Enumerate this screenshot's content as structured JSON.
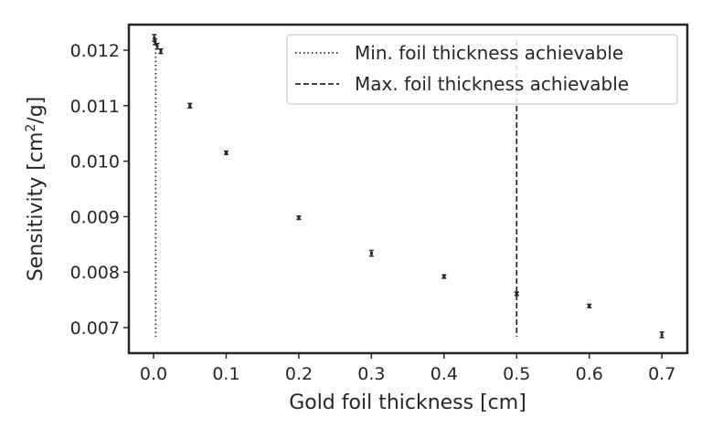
{
  "chart_data": {
    "type": "scatter",
    "title": "",
    "xlabel": "Gold foil thickness [cm]",
    "ylabel_text": "Sensitivity [cm",
    "ylabel_sup": "2",
    "ylabel_tail": "/g]",
    "xlim": [
      -0.034,
      0.735
    ],
    "ylim": [
      0.00654,
      0.01246
    ],
    "xticks": [
      0.0,
      0.1,
      0.2,
      0.3,
      0.4,
      0.5,
      0.6,
      0.7
    ],
    "xtick_labels": [
      "0.0",
      "0.1",
      "0.2",
      "0.3",
      "0.4",
      "0.5",
      "0.6",
      "0.7"
    ],
    "yticks": [
      0.007,
      0.008,
      0.009,
      0.01,
      0.011,
      0.012
    ],
    "ytick_labels": [
      "0.007",
      "0.008",
      "0.009",
      "0.010",
      "0.011",
      "0.012"
    ],
    "grid": false,
    "legend_position": "top-right",
    "points": [
      {
        "x": 0.001,
        "y": 0.01222,
        "err": 6e-05
      },
      {
        "x": 0.002,
        "y": 0.01215,
        "err": 5e-05
      },
      {
        "x": 0.005,
        "y": 0.01207,
        "err": 5e-05
      },
      {
        "x": 0.01,
        "y": 0.01198,
        "err": 4e-05
      },
      {
        "x": 0.05,
        "y": 0.011,
        "err": 4e-05
      },
      {
        "x": 0.1,
        "y": 0.01015,
        "err": 3e-05
      },
      {
        "x": 0.2,
        "y": 0.00898,
        "err": 3e-05
      },
      {
        "x": 0.3,
        "y": 0.00834,
        "err": 5e-05
      },
      {
        "x": 0.4,
        "y": 0.00792,
        "err": 3e-05
      },
      {
        "x": 0.5,
        "y": 0.00761,
        "err": 3e-05
      },
      {
        "x": 0.6,
        "y": 0.00739,
        "err": 3e-05
      },
      {
        "x": 0.7,
        "y": 0.00687,
        "err": 5e-05
      }
    ],
    "vlines": [
      {
        "x": 0.003,
        "style": "dotted",
        "label": "Min. foil thickness achievable"
      },
      {
        "x": 0.5,
        "style": "dashed",
        "label": "Max. foil thickness achievable"
      }
    ],
    "colors": {
      "marker": "#262626",
      "frame": "#262626"
    }
  }
}
